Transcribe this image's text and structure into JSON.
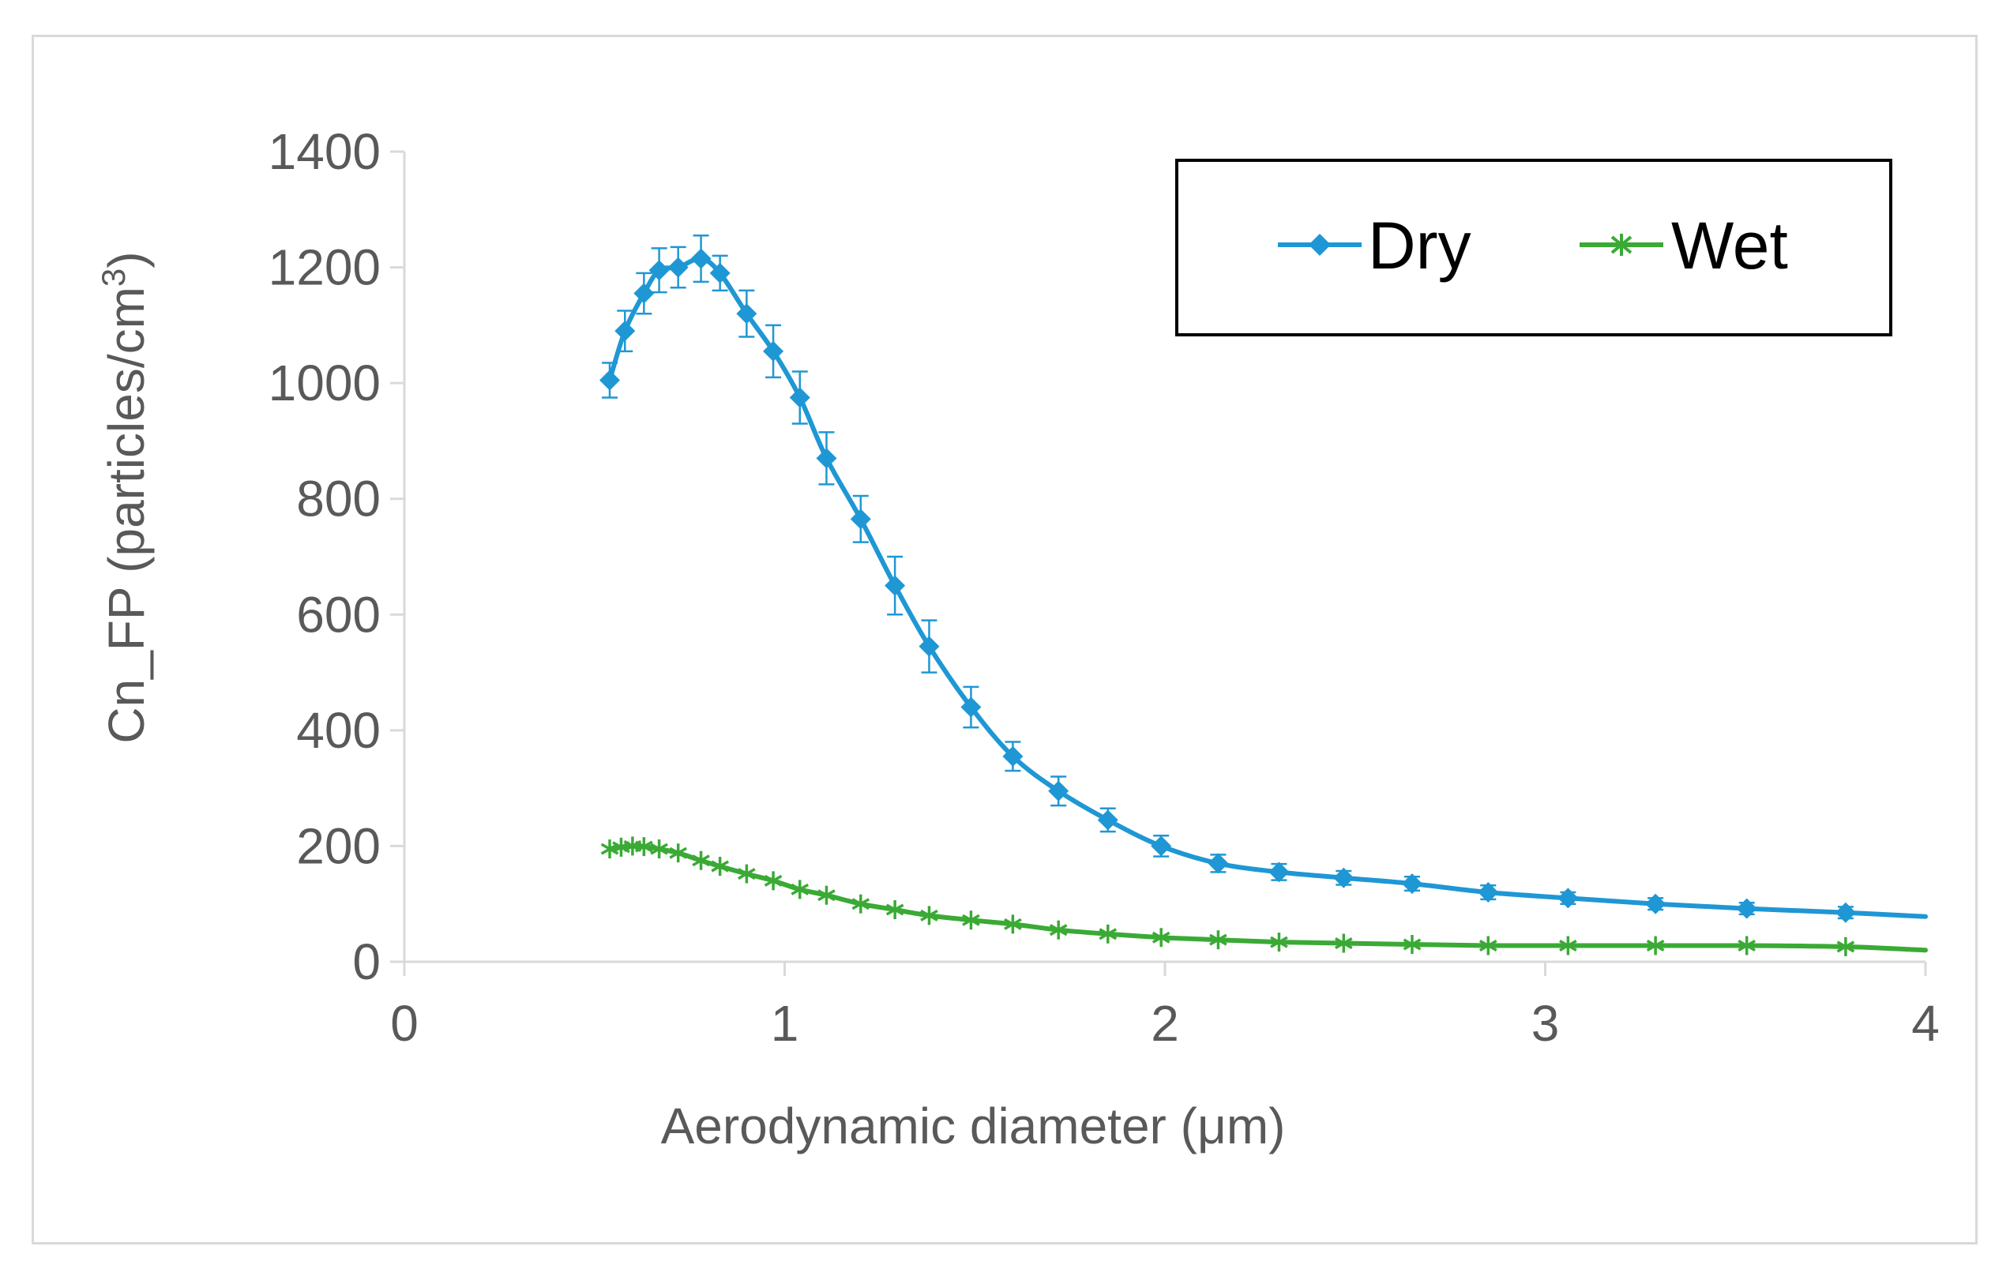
{
  "chart_data": {
    "type": "line",
    "title": "",
    "xlabel": "Aerodynamic diameter (μm)",
    "ylabel": "Cn_FP (particles/cm",
    "ylabel_sup": "3",
    "ylabel_suffix": ")",
    "xlim": [
      0,
      4
    ],
    "ylim": [
      0,
      1400
    ],
    "x_ticks": [
      0,
      1,
      2,
      3,
      4
    ],
    "x_tick_labels": [
      "0",
      "1",
      "2",
      "3",
      "4"
    ],
    "y_ticks": [
      0,
      200,
      400,
      600,
      800,
      1000,
      1200,
      1400
    ],
    "y_tick_labels": [
      "0",
      "200",
      "400",
      "600",
      "800",
      "1000",
      "1200",
      "1400"
    ],
    "grid": false,
    "legend_position": "top-right",
    "series": [
      {
        "name": "Dry",
        "color": "#1f97d4",
        "marker": "diamond",
        "x": [
          0.54,
          0.58,
          0.63,
          0.67,
          0.72,
          0.78,
          0.83,
          0.9,
          0.97,
          1.04,
          1.11,
          1.2,
          1.29,
          1.38,
          1.49,
          1.6,
          1.72,
          1.85,
          1.99,
          2.14,
          2.3,
          2.47,
          2.65,
          2.85,
          3.06,
          3.29,
          3.53,
          3.79,
          4.0
        ],
        "y": [
          1005,
          1090,
          1155,
          1195,
          1200,
          1215,
          1190,
          1120,
          1055,
          975,
          870,
          765,
          650,
          545,
          440,
          355,
          295,
          245,
          200,
          170,
          155,
          145,
          135,
          120,
          110,
          100,
          92,
          85,
          78
        ],
        "err": [
          30,
          35,
          35,
          38,
          35,
          40,
          30,
          40,
          45,
          45,
          45,
          40,
          50,
          45,
          35,
          25,
          25,
          20,
          18,
          15,
          14,
          12,
          12,
          12,
          10,
          10,
          10,
          10,
          0
        ]
      },
      {
        "name": "Wet",
        "color": "#3aaa35",
        "marker": "asterisk",
        "x": [
          0.54,
          0.57,
          0.6,
          0.63,
          0.67,
          0.72,
          0.78,
          0.83,
          0.9,
          0.97,
          1.04,
          1.11,
          1.2,
          1.29,
          1.38,
          1.49,
          1.6,
          1.72,
          1.85,
          1.99,
          2.14,
          2.3,
          2.47,
          2.65,
          2.85,
          3.06,
          3.29,
          3.53,
          3.79,
          4.0
        ],
        "y": [
          195,
          198,
          200,
          199,
          195,
          188,
          175,
          165,
          152,
          140,
          125,
          115,
          100,
          90,
          80,
          72,
          65,
          55,
          48,
          42,
          38,
          34,
          32,
          30,
          28,
          28,
          28,
          28,
          26,
          20
        ]
      }
    ]
  }
}
